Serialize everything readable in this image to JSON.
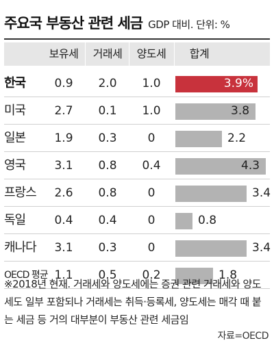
{
  "header": {
    "title": "주요국 부동산 관련 세금",
    "subtitle": "GDP 대비. 단위: %"
  },
  "table_headers": [
    "보유세",
    "거래세",
    "양도세",
    "합계"
  ],
  "colors": {
    "highlight": "#c8323c",
    "bar": "#b3b3b3",
    "header_bg": "#e6e6e6"
  },
  "chart_data": {
    "type": "bar",
    "title": "주요국 부동산 관련 세금",
    "subtitle": "GDP 대비. 단위: %",
    "categories": [
      "한국",
      "미국",
      "일본",
      "영국",
      "프랑스",
      "독일",
      "캐나다",
      "OECD 평균"
    ],
    "columns": [
      "보유세",
      "거래세",
      "양도세"
    ],
    "rows": [
      [
        "0.9",
        "2.0",
        "1.0"
      ],
      [
        "2.7",
        "0.1",
        "1.0"
      ],
      [
        "1.9",
        "0.3",
        "0"
      ],
      [
        "3.1",
        "0.8",
        "0.4"
      ],
      [
        "2.6",
        "0.8",
        "0"
      ],
      [
        "0.4",
        "0.4",
        "0"
      ],
      [
        "3.1",
        "0.3",
        "0"
      ],
      [
        "1.1",
        "0.5",
        "0.2"
      ]
    ],
    "series": [
      {
        "name": "합계",
        "values": [
          3.9,
          3.8,
          2.2,
          4.3,
          3.4,
          0.8,
          3.4,
          1.8
        ]
      }
    ],
    "value_labels": [
      "3.9%",
      "3.8",
      "2.2",
      "4.3",
      "3.4",
      "0.8",
      "3.4",
      "1.8"
    ],
    "highlight_index": 0,
    "xlim": [
      0,
      4.3
    ]
  },
  "footnote": "※2018년 현재. 거래세와 양도세에는 증권 관련 거래세와 양도세도 일부 포함되나 거래세는 취득·등록세, 양도세는 매각 때 붙는 세금 등 거의 대부분이 부동산 관련 세금임",
  "source": "자료=OECD"
}
